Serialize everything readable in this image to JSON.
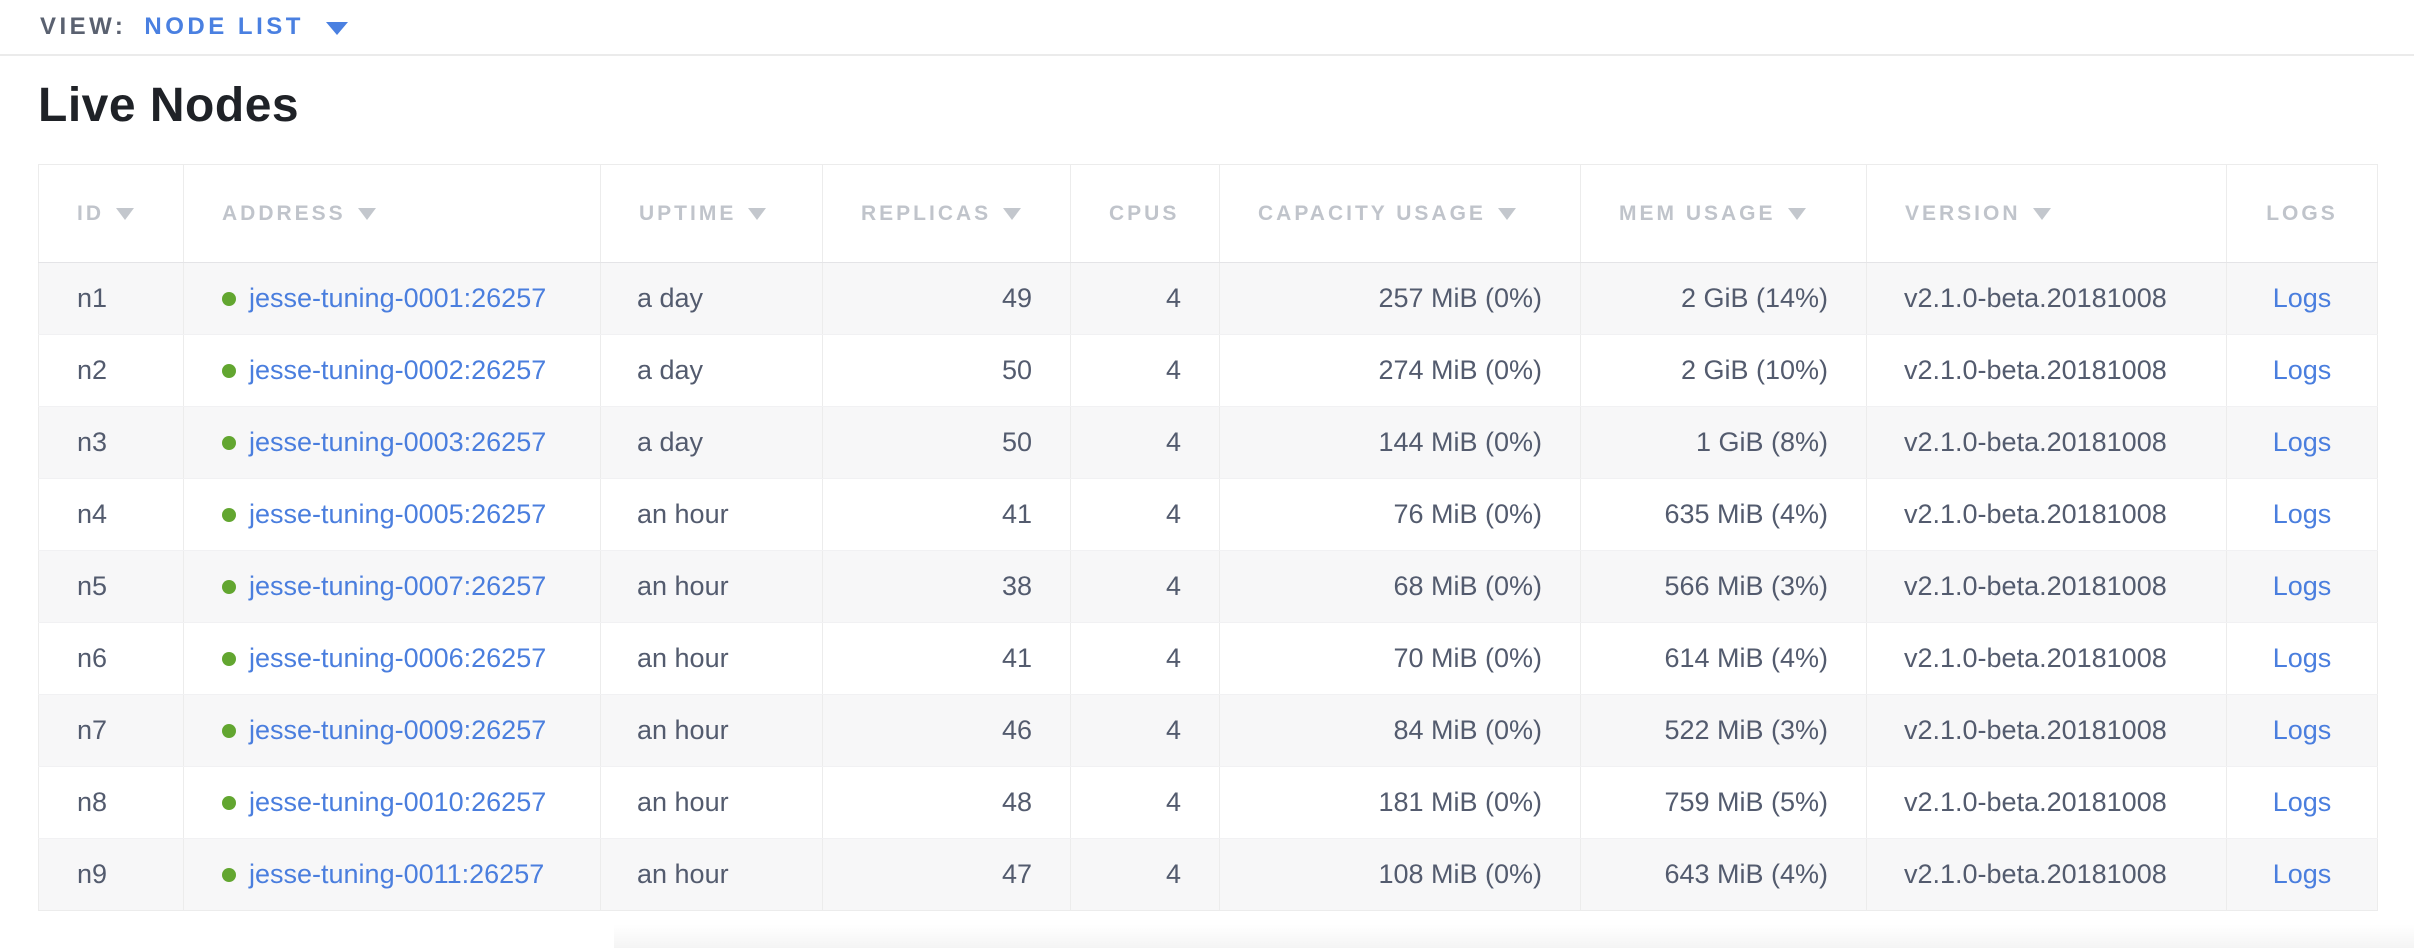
{
  "topbar": {
    "view_label": "VIEW:",
    "view_value": "NODE LIST"
  },
  "page": {
    "title": "Live Nodes"
  },
  "table": {
    "columns": [
      {
        "label": "ID",
        "sortable": true
      },
      {
        "label": "ADDRESS",
        "sortable": true
      },
      {
        "label": "UPTIME",
        "sortable": true
      },
      {
        "label": "REPLICAS",
        "sortable": true
      },
      {
        "label": "CPUS",
        "sortable": false
      },
      {
        "label": "CAPACITY USAGE",
        "sortable": true
      },
      {
        "label": "MEM USAGE",
        "sortable": true
      },
      {
        "label": "VERSION",
        "sortable": true
      },
      {
        "label": "LOGS",
        "sortable": false
      }
    ],
    "rows": [
      {
        "id": "n1",
        "address": "jesse-tuning-0001:26257",
        "uptime": "a day",
        "replicas": "49",
        "cpus": "4",
        "capacity": "257 MiB (0%)",
        "mem": "2 GiB (14%)",
        "version": "v2.1.0-beta.20181008",
        "logs": "Logs"
      },
      {
        "id": "n2",
        "address": "jesse-tuning-0002:26257",
        "uptime": "a day",
        "replicas": "50",
        "cpus": "4",
        "capacity": "274 MiB (0%)",
        "mem": "2 GiB (10%)",
        "version": "v2.1.0-beta.20181008",
        "logs": "Logs"
      },
      {
        "id": "n3",
        "address": "jesse-tuning-0003:26257",
        "uptime": "a day",
        "replicas": "50",
        "cpus": "4",
        "capacity": "144 MiB (0%)",
        "mem": "1 GiB (8%)",
        "version": "v2.1.0-beta.20181008",
        "logs": "Logs"
      },
      {
        "id": "n4",
        "address": "jesse-tuning-0005:26257",
        "uptime": "an hour",
        "replicas": "41",
        "cpus": "4",
        "capacity": "76 MiB (0%)",
        "mem": "635 MiB (4%)",
        "version": "v2.1.0-beta.20181008",
        "logs": "Logs"
      },
      {
        "id": "n5",
        "address": "jesse-tuning-0007:26257",
        "uptime": "an hour",
        "replicas": "38",
        "cpus": "4",
        "capacity": "68 MiB (0%)",
        "mem": "566 MiB (3%)",
        "version": "v2.1.0-beta.20181008",
        "logs": "Logs"
      },
      {
        "id": "n6",
        "address": "jesse-tuning-0006:26257",
        "uptime": "an hour",
        "replicas": "41",
        "cpus": "4",
        "capacity": "70 MiB (0%)",
        "mem": "614 MiB (4%)",
        "version": "v2.1.0-beta.20181008",
        "logs": "Logs"
      },
      {
        "id": "n7",
        "address": "jesse-tuning-0009:26257",
        "uptime": "an hour",
        "replicas": "46",
        "cpus": "4",
        "capacity": "84 MiB (0%)",
        "mem": "522 MiB (3%)",
        "version": "v2.1.0-beta.20181008",
        "logs": "Logs"
      },
      {
        "id": "n8",
        "address": "jesse-tuning-0010:26257",
        "uptime": "an hour",
        "replicas": "48",
        "cpus": "4",
        "capacity": "181 MiB (0%)",
        "mem": "759 MiB (5%)",
        "version": "v2.1.0-beta.20181008",
        "logs": "Logs"
      },
      {
        "id": "n9",
        "address": "jesse-tuning-0011:26257",
        "uptime": "an hour",
        "replicas": "47",
        "cpus": "4",
        "capacity": "108 MiB (0%)",
        "mem": "643 MiB (4%)",
        "version": "v2.1.0-beta.20181008",
        "logs": "Logs"
      }
    ]
  },
  "colors": {
    "link_blue": "#4a7ede",
    "dropdown_blue": "#4a80e1",
    "live_green": "#62a630",
    "header_gray": "#c0c4cb",
    "cell_text": "#535b6e",
    "alt_row_bg": "#f7f7f8",
    "border": "#ececec"
  }
}
